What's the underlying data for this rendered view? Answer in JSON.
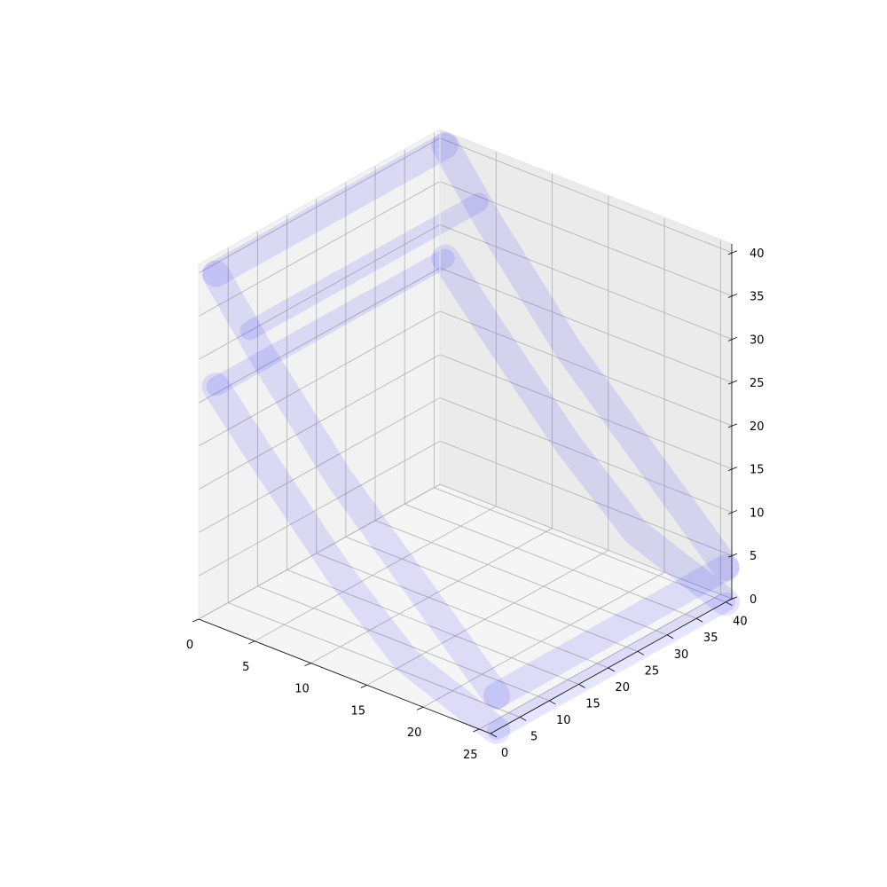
{
  "chart_data": {
    "type": "3d-isosurface",
    "title": "",
    "xlabel": "",
    "ylabel": "",
    "zlabel": "",
    "xlim": [
      0,
      26
    ],
    "ylim": [
      0,
      41
    ],
    "zlim": [
      0,
      41
    ],
    "x_ticks": [
      "0",
      "5",
      "10",
      "15",
      "20",
      "25"
    ],
    "y_ticks": [
      "0",
      "5",
      "10",
      "15",
      "20",
      "25",
      "30",
      "35",
      "40"
    ],
    "z_ticks": [
      "0",
      "5",
      "10",
      "15",
      "20",
      "25",
      "30",
      "35",
      "40"
    ],
    "grid": true,
    "surface_color": "#0000ff",
    "surface_alpha": 0.1,
    "pane_colors": [
      "#f2f2f2",
      "#f5f5f5",
      "#ebebeb"
    ],
    "grid_color": "#b0b0b0",
    "series": [
      {
        "points": [
          [
            1,
            1,
            40
          ],
          [
            5,
            1,
            33
          ],
          [
            12,
            1,
            22
          ],
          [
            19,
            1,
            13
          ],
          [
            26,
            1,
            4
          ]
        ],
        "width": 3.2
      },
      {
        "points": [
          [
            1,
            1,
            27
          ],
          [
            5,
            1,
            21
          ],
          [
            12,
            1,
            11
          ],
          [
            18,
            1,
            4
          ],
          [
            26,
            1,
            0
          ]
        ],
        "width": 3.2
      },
      {
        "points": [
          [
            1,
            40,
            40
          ],
          [
            5,
            40,
            33
          ],
          [
            12,
            40,
            22
          ],
          [
            19,
            40,
            13
          ],
          [
            26,
            40,
            4
          ]
        ],
        "width": 3.2
      },
      {
        "points": [
          [
            1,
            40,
            27
          ],
          [
            5,
            40,
            21
          ],
          [
            12,
            40,
            11
          ],
          [
            18,
            40,
            4
          ],
          [
            26,
            40,
            0
          ]
        ],
        "width": 3.2
      },
      {
        "points": [
          [
            1,
            1,
            40
          ],
          [
            1,
            20,
            40
          ],
          [
            1,
            40,
            40
          ]
        ],
        "width": 3.0
      },
      {
        "points": [
          [
            4,
            1,
            35
          ],
          [
            4,
            20,
            35
          ],
          [
            4,
            40,
            35
          ]
        ],
        "width": 2.2
      },
      {
        "points": [
          [
            1,
            1,
            27
          ],
          [
            1,
            20,
            27
          ],
          [
            1,
            40,
            27
          ]
        ],
        "width": 2.2
      },
      {
        "points": [
          [
            26,
            1,
            4
          ],
          [
            26,
            20,
            4
          ],
          [
            26,
            40,
            4
          ]
        ],
        "width": 3.0
      },
      {
        "points": [
          [
            26,
            1,
            0
          ],
          [
            26,
            20,
            0
          ],
          [
            26,
            40,
            0
          ]
        ],
        "width": 2.2
      }
    ]
  }
}
